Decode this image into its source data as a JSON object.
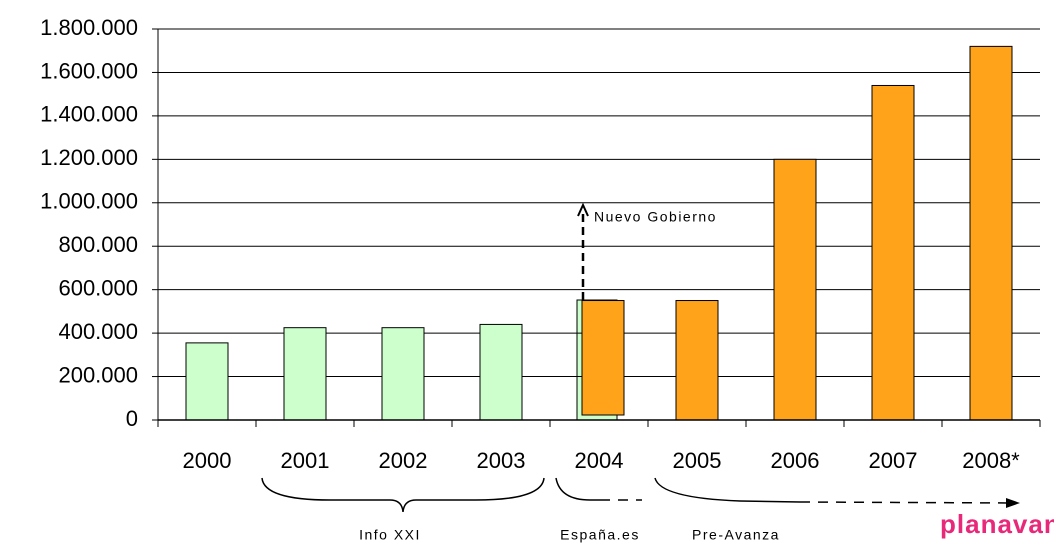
{
  "chart_data": {
    "type": "bar",
    "categories": [
      "2000",
      "2001",
      "2002",
      "2003",
      "2004",
      "2005",
      "2006",
      "2007",
      "2008*"
    ],
    "values": [
      355000,
      425000,
      425000,
      440000,
      550000,
      550000,
      1200000,
      1540000,
      1720000
    ],
    "colors": [
      "#ccffcc",
      "#ccffcc",
      "#ccffcc",
      "#ccffcc",
      "#ffa31a",
      "#ffa31a",
      "#ffa31a",
      "#ffa31a",
      "#ffa31a"
    ],
    "ylim": [
      0,
      1800000
    ],
    "yticks": [
      0,
      {
        "value": 200000,
        "label": "200.000"
      },
      {
        "value": 400000,
        "label": "400.000"
      },
      {
        "value": 600000,
        "label": "600.000"
      },
      {
        "value": 800000,
        "label": "800.000"
      },
      {
        "value": 1000000,
        "label": "1.000.000"
      },
      {
        "value": 1200000,
        "label": "1.200.000"
      },
      {
        "value": 1400000,
        "label": "1.400.000"
      },
      {
        "value": 1600000,
        "label": "1.600.000"
      },
      {
        "value": 1800000,
        "label": "1.800.000"
      }
    ],
    "grid": true,
    "annotations": [
      "Nuevo Gobierno",
      "Info XXI",
      "España.es",
      "Pre-Avanza",
      "planavanza"
    ]
  }
}
